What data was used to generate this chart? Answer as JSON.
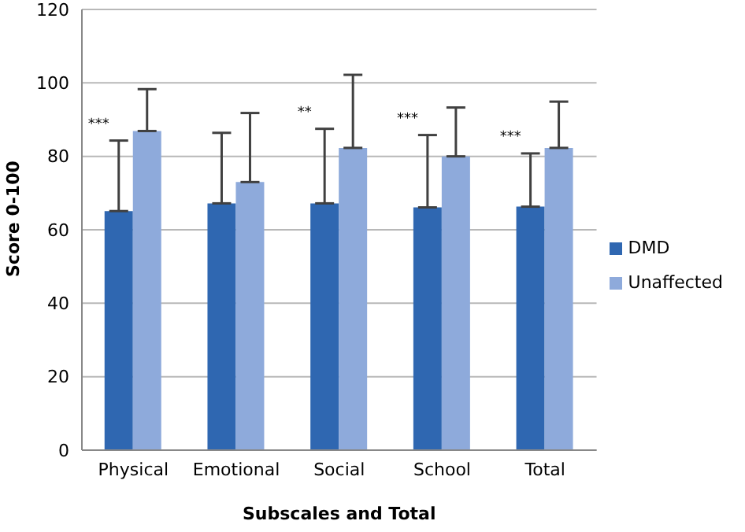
{
  "chart_data": {
    "type": "bar",
    "xlabel": "Subscales and Total",
    "ylabel": "Score 0-100",
    "categories": [
      "Physical",
      "Emotional",
      "Social",
      "School",
      "Total"
    ],
    "series": [
      {
        "name": "DMD",
        "color": "#2f67b1",
        "values": [
          65.1,
          67.2,
          67.2,
          66.1,
          66.3
        ],
        "errors": [
          [
            65.1,
            84.3
          ],
          [
            67.2,
            86.4
          ],
          [
            67.2,
            87.5
          ],
          [
            66.1,
            85.8
          ],
          [
            66.3,
            80.8
          ]
        ]
      },
      {
        "name": "Unaffected",
        "color": "#8eaadb",
        "values": [
          86.9,
          73.0,
          82.3,
          80.0,
          82.3
        ],
        "errors": [
          [
            86.9,
            98.3
          ],
          [
            73.0,
            91.8
          ],
          [
            82.3,
            102.2
          ],
          [
            80.0,
            93.3
          ],
          [
            82.3,
            94.9
          ]
        ]
      }
    ],
    "annotations": [
      {
        "text": "***",
        "x": "Physical",
        "y": 84.3
      },
      {
        "text": "**",
        "x": "Social",
        "y": 87.5
      },
      {
        "text": "***",
        "x": "School",
        "y": 85.8
      },
      {
        "text": "***",
        "x": "Total",
        "y": 80.8
      }
    ],
    "ylim": [
      0,
      120
    ],
    "yticks": [
      0,
      20,
      40,
      60,
      80,
      100,
      120
    ],
    "grid": "y",
    "legend": "right"
  }
}
